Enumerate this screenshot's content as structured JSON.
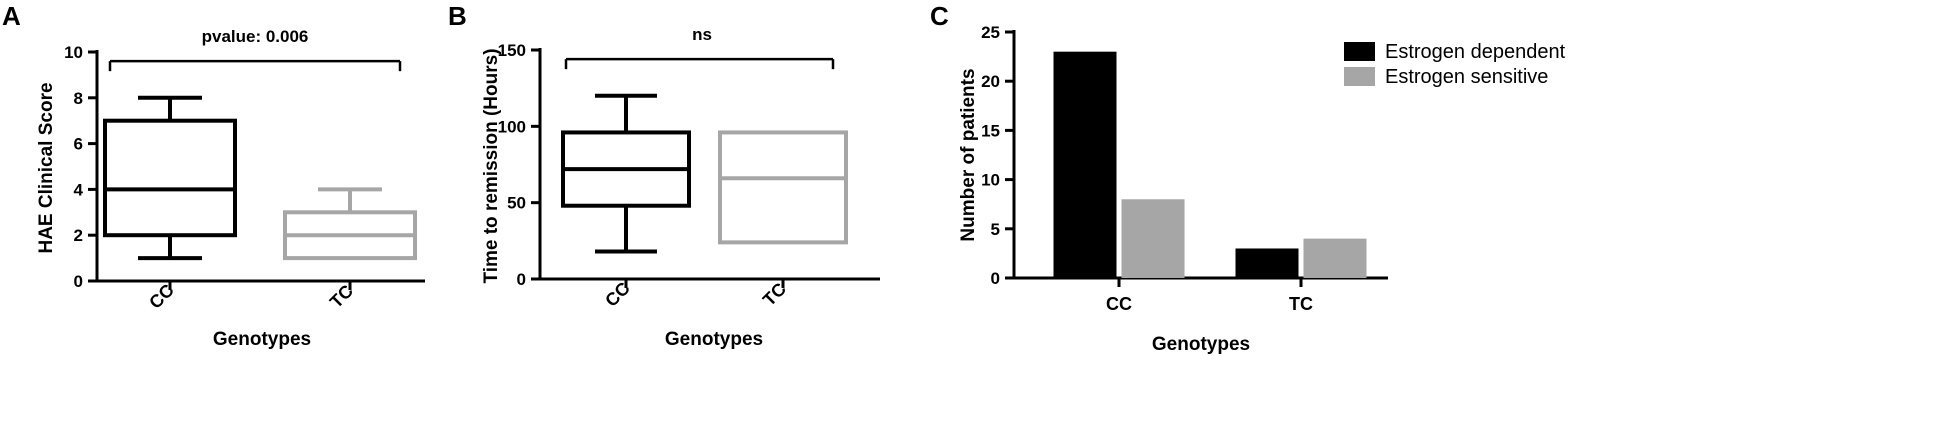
{
  "colors": {
    "dark": "#000000",
    "light": "#a6a6a6"
  },
  "chart_data": [
    {
      "panel": "A",
      "type": "box",
      "xlabel": "Genotypes",
      "ylabel": "HAE Clinical Score",
      "ylim": [
        0,
        10
      ],
      "yticks": [
        "0",
        "2",
        "4",
        "6",
        "8",
        "10"
      ],
      "categories": [
        "CC",
        "TC"
      ],
      "boxes": [
        {
          "category": "CC",
          "min": 1,
          "q1": 2,
          "median": 4,
          "q3": 7,
          "max": 8,
          "color": "dark"
        },
        {
          "category": "TC",
          "min": 1,
          "q1": 1,
          "median": 2,
          "q3": 3,
          "max": 4,
          "color": "light"
        }
      ],
      "annotation": "pvalue: 0.006",
      "annotation_y": 9.6
    },
    {
      "panel": "B",
      "type": "box",
      "xlabel": "Genotypes",
      "ylabel": "Time to remission (Hours)",
      "ylim": [
        0,
        150
      ],
      "yticks": [
        "0",
        "50",
        "100",
        "150"
      ],
      "categories": [
        "CC",
        "TC"
      ],
      "boxes": [
        {
          "category": "CC",
          "min": 18,
          "q1": 48,
          "median": 72,
          "q3": 96,
          "max": 120,
          "color": "dark"
        },
        {
          "category": "TC",
          "min": 24,
          "q1": 24,
          "median": 66,
          "q3": 96,
          "max": 96,
          "color": "light"
        }
      ],
      "annotation": "ns",
      "annotation_y": 144
    },
    {
      "panel": "C",
      "type": "bar",
      "xlabel": "Genotypes",
      "ylabel": "Number of patients",
      "ylim": [
        0,
        25
      ],
      "yticks": [
        "0",
        "5",
        "10",
        "15",
        "20",
        "25"
      ],
      "categories": [
        "CC",
        "TC"
      ],
      "series": [
        {
          "name": "Estrogen dependent",
          "values": [
            23,
            3
          ],
          "color": "dark"
        },
        {
          "name": "Estrogen sensitive",
          "values": [
            8,
            4
          ],
          "color": "light"
        }
      ],
      "legend": "top-right"
    }
  ]
}
